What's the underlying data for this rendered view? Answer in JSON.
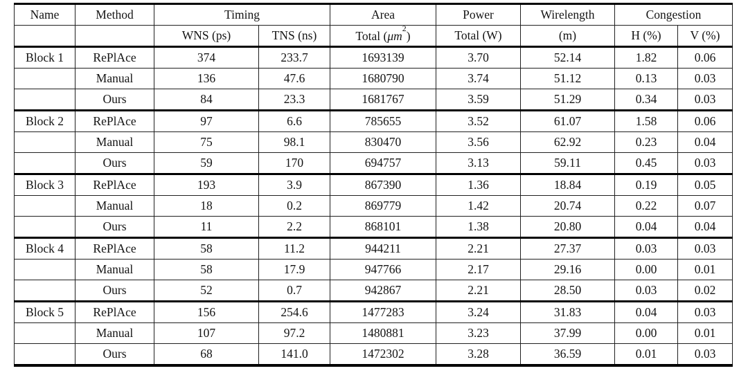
{
  "table": {
    "header": {
      "name": "Name",
      "method": "Method",
      "timing": "Timing",
      "area": "Area",
      "power": "Power",
      "wirelength": "Wirelength",
      "congestion": "Congestion"
    },
    "subheader": {
      "name": "",
      "method": "",
      "wns": "WNS (ps)",
      "tns": "TNS (ns)",
      "area_pre": "Total (",
      "area_math": "μm",
      "area_sup": "2",
      "area_post": ")",
      "power": "Total (W)",
      "wirelength": "(m)",
      "h": "H (%)",
      "v": "V (%)"
    },
    "columns": [
      "name",
      "method",
      "wns_ps",
      "tns_ns",
      "area_total_um2",
      "power_total_w",
      "wirelength_m",
      "congestion_h_pct",
      "congestion_v_pct"
    ],
    "groups": [
      {
        "name": "Block 1",
        "rows": [
          {
            "method": "RePlAce",
            "muted": true,
            "values": [
              "374",
              "233.7",
              "1693139",
              "3.70",
              "52.14",
              "1.82",
              "0.06"
            ]
          },
          {
            "method": "Manual",
            "muted": false,
            "values": [
              "136",
              "47.6",
              "1680790",
              "3.74",
              "51.12",
              "0.13",
              "0.03"
            ]
          },
          {
            "method": "Ours",
            "muted": false,
            "values": [
              "84",
              "23.3",
              "1681767",
              "3.59",
              "51.29",
              "0.34",
              "0.03"
            ]
          }
        ]
      },
      {
        "name": "Block 2",
        "rows": [
          {
            "method": "RePlAce",
            "muted": true,
            "values": [
              "97",
              "6.6",
              "785655",
              "3.52",
              "61.07",
              "1.58",
              "0.06"
            ]
          },
          {
            "method": "Manual",
            "muted": false,
            "values": [
              "75",
              "98.1",
              "830470",
              "3.56",
              "62.92",
              "0.23",
              "0.04"
            ]
          },
          {
            "method": "Ours",
            "muted": false,
            "values": [
              "59",
              "170",
              "694757",
              "3.13",
              "59.11",
              "0.45",
              "0.03"
            ]
          }
        ]
      },
      {
        "name": "Block 3",
        "rows": [
          {
            "method": "RePlAce",
            "muted": true,
            "values": [
              "193",
              "3.9",
              "867390",
              "1.36",
              "18.84",
              "0.19",
              "0.05"
            ]
          },
          {
            "method": "Manual",
            "muted": false,
            "values": [
              "18",
              "0.2",
              "869779",
              "1.42",
              "20.74",
              "0.22",
              "0.07"
            ]
          },
          {
            "method": "Ours",
            "muted": false,
            "values": [
              "11",
              "2.2",
              "868101",
              "1.38",
              "20.80",
              "0.04",
              "0.04"
            ]
          }
        ]
      },
      {
        "name": "Block 4",
        "rows": [
          {
            "method": "RePlAce",
            "muted": false,
            "values": [
              "58",
              "11.2",
              "944211",
              "2.21",
              "27.37",
              "0.03",
              "0.03"
            ]
          },
          {
            "method": "Manual",
            "muted": false,
            "values": [
              "58",
              "17.9",
              "947766",
              "2.17",
              "29.16",
              "0.00",
              "0.01"
            ]
          },
          {
            "method": "Ours",
            "muted": false,
            "values": [
              "52",
              "0.7",
              "942867",
              "2.21",
              "28.50",
              "0.03",
              "0.02"
            ]
          }
        ]
      },
      {
        "name": "Block 5",
        "rows": [
          {
            "method": "RePlAce",
            "muted": false,
            "values": [
              "156",
              "254.6",
              "1477283",
              "3.24",
              "31.83",
              "0.04",
              "0.03"
            ]
          },
          {
            "method": "Manual",
            "muted": false,
            "values": [
              "107",
              "97.2",
              "1480881",
              "3.23",
              "37.99",
              "0.00",
              "0.01"
            ]
          },
          {
            "method": "Ours",
            "muted": false,
            "values": [
              "68",
              "141.0",
              "1472302",
              "3.28",
              "36.59",
              "0.01",
              "0.03"
            ]
          }
        ]
      }
    ],
    "colors": {
      "text": "#141414",
      "muted_text": "#9c9c9c",
      "thin_rule": "#1f1f1f",
      "thick_rule": "#000000",
      "background": "#ffffff"
    }
  }
}
